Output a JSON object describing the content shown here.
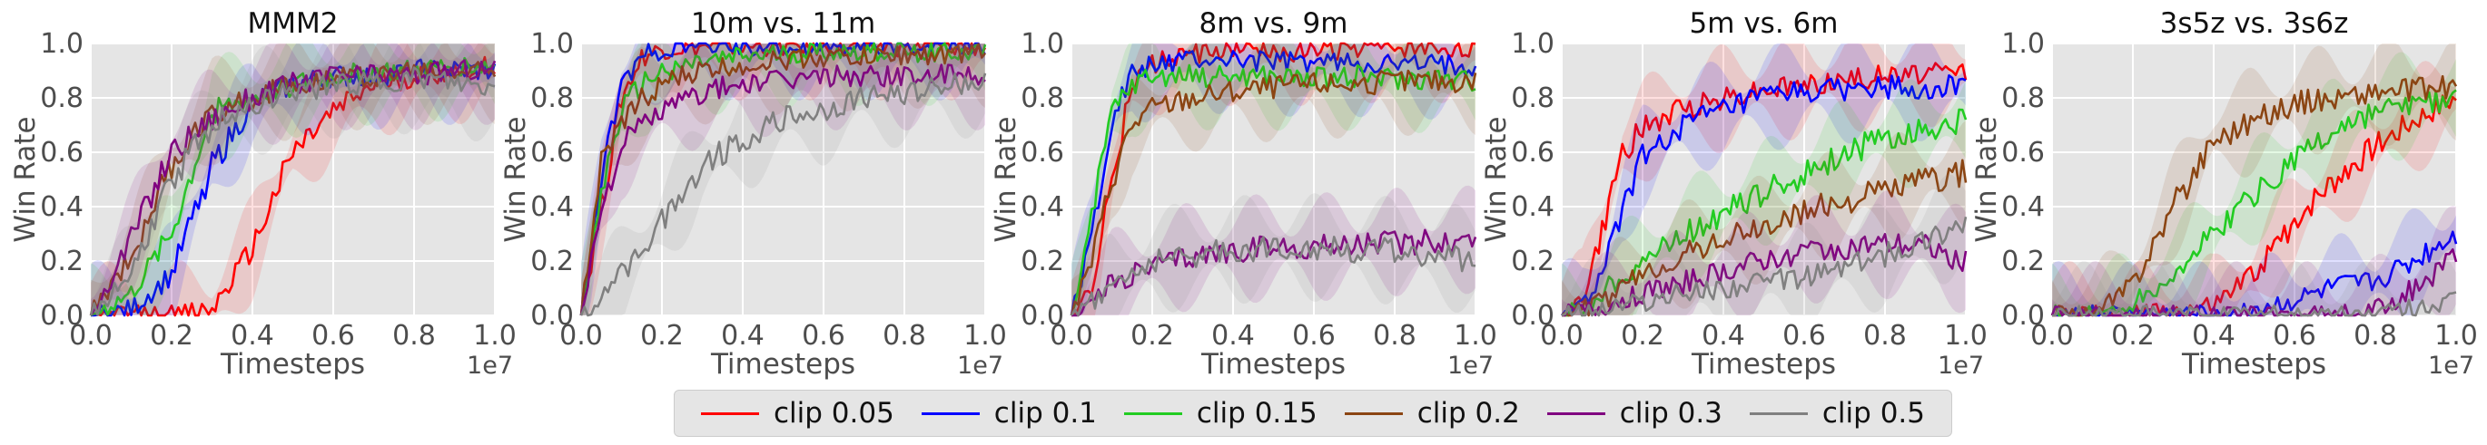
{
  "figure": {
    "x_tick_labels": [
      "0.0",
      "0.2",
      "0.4",
      "0.6",
      "0.8",
      "1.0"
    ],
    "y_tick_labels": [
      "0.0",
      "0.2",
      "0.4",
      "0.6",
      "0.8",
      "1.0"
    ],
    "x_scale_label": "1e7",
    "colors": {
      "clip 0.05": "#ff0000",
      "clip 0.1": "#0000ff",
      "clip 0.15": "#22cc22",
      "clip 0.2": "#8b4513",
      "clip 0.3": "#800080",
      "clip 0.5": "#808080"
    }
  },
  "legend": {
    "items": [
      {
        "label": "clip 0.05",
        "color": "#ff0000"
      },
      {
        "label": "clip 0.1",
        "color": "#0000ff"
      },
      {
        "label": "clip 0.15",
        "color": "#22cc22"
      },
      {
        "label": "clip 0.2",
        "color": "#8b4513"
      },
      {
        "label": "clip 0.3",
        "color": "#800080"
      },
      {
        "label": "clip 0.5",
        "color": "#808080"
      }
    ]
  },
  "chart_data": [
    {
      "type": "line",
      "title": "MMM2",
      "xlabel": "Timesteps",
      "ylabel": "Win Rate",
      "xlim": [
        0,
        1.0
      ],
      "ylim": [
        0,
        1.0
      ],
      "x_multiplier": "1e7",
      "grid": true,
      "x": [
        0.0,
        0.1,
        0.2,
        0.3,
        0.4,
        0.5,
        0.6,
        0.7,
        0.8,
        0.9,
        1.0
      ],
      "series": [
        {
          "name": "clip 0.05",
          "values": [
            0.0,
            0.0,
            0.0,
            0.02,
            0.25,
            0.6,
            0.75,
            0.85,
            0.88,
            0.9,
            0.92
          ]
        },
        {
          "name": "clip 0.1",
          "values": [
            0.0,
            0.02,
            0.15,
            0.55,
            0.78,
            0.85,
            0.88,
            0.88,
            0.9,
            0.9,
            0.9
          ]
        },
        {
          "name": "clip 0.15",
          "values": [
            0.0,
            0.08,
            0.3,
            0.75,
            0.8,
            0.85,
            0.88,
            0.9,
            0.9,
            0.92,
            0.92
          ]
        },
        {
          "name": "clip 0.2",
          "values": [
            0.0,
            0.22,
            0.55,
            0.75,
            0.8,
            0.85,
            0.88,
            0.88,
            0.9,
            0.9,
            0.9
          ]
        },
        {
          "name": "clip 0.3",
          "values": [
            0.0,
            0.28,
            0.6,
            0.72,
            0.8,
            0.85,
            0.88,
            0.88,
            0.88,
            0.9,
            0.9
          ]
        },
        {
          "name": "clip 0.5",
          "values": [
            0.0,
            0.15,
            0.5,
            0.7,
            0.78,
            0.82,
            0.85,
            0.85,
            0.87,
            0.85,
            0.83
          ]
        }
      ]
    },
    {
      "type": "line",
      "title": "10m vs. 11m",
      "xlabel": "Timesteps",
      "ylabel": "Win Rate",
      "xlim": [
        0,
        1.0
      ],
      "ylim": [
        0,
        1.0
      ],
      "x_multiplier": "1e7",
      "grid": true,
      "x": [
        0.0,
        0.05,
        0.1,
        0.15,
        0.2,
        0.3,
        0.4,
        0.5,
        0.6,
        0.7,
        0.8,
        0.9,
        1.0
      ],
      "series": [
        {
          "name": "clip 0.05",
          "values": [
            0.0,
            0.4,
            0.8,
            0.95,
            0.98,
            0.99,
            0.99,
            0.99,
            0.99,
            0.99,
            0.99,
            0.99,
            0.99
          ]
        },
        {
          "name": "clip 0.1",
          "values": [
            0.0,
            0.5,
            0.85,
            0.95,
            0.98,
            0.99,
            0.99,
            0.99,
            0.99,
            0.99,
            0.99,
            0.99,
            0.99
          ]
        },
        {
          "name": "clip 0.15",
          "values": [
            0.0,
            0.45,
            0.75,
            0.85,
            0.9,
            0.93,
            0.95,
            0.96,
            0.97,
            0.97,
            0.97,
            0.97,
            0.97
          ]
        },
        {
          "name": "clip 0.2",
          "values": [
            0.0,
            0.55,
            0.7,
            0.8,
            0.85,
            0.9,
            0.92,
            0.94,
            0.95,
            0.95,
            0.96,
            0.96,
            0.96
          ]
        },
        {
          "name": "clip 0.3",
          "values": [
            0.0,
            0.4,
            0.62,
            0.7,
            0.75,
            0.82,
            0.85,
            0.86,
            0.88,
            0.88,
            0.88,
            0.88,
            0.88
          ]
        },
        {
          "name": "clip 0.5",
          "values": [
            0.0,
            0.05,
            0.15,
            0.25,
            0.35,
            0.55,
            0.65,
            0.72,
            0.75,
            0.8,
            0.82,
            0.85,
            0.85
          ]
        }
      ]
    },
    {
      "type": "line",
      "title": "8m vs. 9m",
      "xlabel": "Timesteps",
      "ylabel": "Win Rate",
      "xlim": [
        0,
        1.0
      ],
      "ylim": [
        0,
        1.0
      ],
      "x_multiplier": "1e7",
      "grid": true,
      "x": [
        0.0,
        0.05,
        0.1,
        0.15,
        0.2,
        0.3,
        0.4,
        0.5,
        0.6,
        0.7,
        0.8,
        0.9,
        1.0
      ],
      "series": [
        {
          "name": "clip 0.05",
          "values": [
            0.0,
            0.1,
            0.5,
            0.85,
            0.93,
            0.96,
            0.97,
            0.97,
            0.97,
            0.98,
            0.98,
            0.98,
            0.98
          ]
        },
        {
          "name": "clip 0.1",
          "values": [
            0.0,
            0.3,
            0.72,
            0.88,
            0.92,
            0.94,
            0.94,
            0.93,
            0.93,
            0.93,
            0.92,
            0.92,
            0.92
          ]
        },
        {
          "name": "clip 0.15",
          "values": [
            0.0,
            0.35,
            0.75,
            0.85,
            0.88,
            0.88,
            0.88,
            0.88,
            0.87,
            0.88,
            0.87,
            0.87,
            0.86
          ]
        },
        {
          "name": "clip 0.2",
          "values": [
            0.0,
            0.2,
            0.5,
            0.7,
            0.76,
            0.8,
            0.82,
            0.84,
            0.85,
            0.85,
            0.86,
            0.86,
            0.86
          ]
        },
        {
          "name": "clip 0.3",
          "values": [
            0.0,
            0.05,
            0.12,
            0.15,
            0.18,
            0.22,
            0.24,
            0.25,
            0.25,
            0.26,
            0.27,
            0.27,
            0.28
          ]
        },
        {
          "name": "clip 0.5",
          "values": [
            0.0,
            0.05,
            0.12,
            0.15,
            0.2,
            0.22,
            0.24,
            0.25,
            0.25,
            0.24,
            0.24,
            0.22,
            0.2
          ]
        }
      ]
    },
    {
      "type": "line",
      "title": "5m vs. 6m",
      "xlabel": "Timesteps",
      "ylabel": "Win Rate",
      "xlim": [
        0,
        1.0
      ],
      "ylim": [
        0,
        1.0
      ],
      "x_multiplier": "1e7",
      "grid": true,
      "x": [
        0.0,
        0.05,
        0.1,
        0.15,
        0.2,
        0.3,
        0.4,
        0.5,
        0.6,
        0.7,
        0.8,
        0.9,
        1.0
      ],
      "series": [
        {
          "name": "clip 0.05",
          "values": [
            0.0,
            0.05,
            0.3,
            0.6,
            0.68,
            0.76,
            0.8,
            0.83,
            0.85,
            0.87,
            0.88,
            0.89,
            0.9
          ]
        },
        {
          "name": "clip 0.1",
          "values": [
            0.0,
            0.03,
            0.15,
            0.4,
            0.58,
            0.7,
            0.75,
            0.8,
            0.82,
            0.83,
            0.84,
            0.84,
            0.84
          ]
        },
        {
          "name": "clip 0.15",
          "values": [
            0.0,
            0.02,
            0.08,
            0.15,
            0.2,
            0.3,
            0.38,
            0.45,
            0.52,
            0.6,
            0.65,
            0.68,
            0.72
          ]
        },
        {
          "name": "clip 0.2",
          "values": [
            0.0,
            0.02,
            0.05,
            0.1,
            0.15,
            0.22,
            0.28,
            0.32,
            0.38,
            0.42,
            0.46,
            0.5,
            0.52
          ]
        },
        {
          "name": "clip 0.3",
          "values": [
            0.0,
            0.01,
            0.03,
            0.06,
            0.08,
            0.12,
            0.16,
            0.2,
            0.24,
            0.25,
            0.26,
            0.25,
            0.2
          ]
        },
        {
          "name": "clip 0.5",
          "values": [
            0.0,
            0.01,
            0.02,
            0.04,
            0.05,
            0.08,
            0.1,
            0.12,
            0.14,
            0.18,
            0.22,
            0.28,
            0.35
          ]
        }
      ]
    },
    {
      "type": "line",
      "title": "3s5z vs. 3s6z",
      "xlabel": "Timesteps",
      "ylabel": "Win Rate",
      "xlim": [
        0,
        1.0
      ],
      "ylim": [
        0,
        1.0
      ],
      "x_multiplier": "1e7",
      "grid": true,
      "x": [
        0.0,
        0.1,
        0.15,
        0.2,
        0.3,
        0.4,
        0.5,
        0.6,
        0.7,
        0.8,
        0.9,
        1.0
      ],
      "series": [
        {
          "name": "clip 0.05",
          "values": [
            0.0,
            0.0,
            0.0,
            0.0,
            0.01,
            0.03,
            0.15,
            0.35,
            0.5,
            0.62,
            0.72,
            0.8
          ]
        },
        {
          "name": "clip 0.1",
          "values": [
            0.0,
            0.0,
            0.0,
            0.0,
            0.0,
            0.0,
            0.02,
            0.05,
            0.1,
            0.12,
            0.2,
            0.3
          ]
        },
        {
          "name": "clip 0.15",
          "values": [
            0.0,
            0.0,
            0.02,
            0.05,
            0.15,
            0.3,
            0.45,
            0.58,
            0.68,
            0.75,
            0.78,
            0.8
          ]
        },
        {
          "name": "clip 0.2",
          "values": [
            0.0,
            0.0,
            0.05,
            0.12,
            0.4,
            0.65,
            0.72,
            0.78,
            0.8,
            0.82,
            0.83,
            0.84
          ]
        },
        {
          "name": "clip 0.3",
          "values": [
            0.0,
            0.0,
            0.0,
            0.0,
            0.0,
            0.0,
            0.0,
            0.0,
            0.0,
            0.02,
            0.1,
            0.22
          ]
        },
        {
          "name": "clip 0.5",
          "values": [
            0.0,
            0.0,
            0.0,
            0.0,
            0.0,
            0.0,
            0.0,
            0.0,
            0.0,
            0.0,
            0.03,
            0.05
          ]
        }
      ]
    }
  ]
}
